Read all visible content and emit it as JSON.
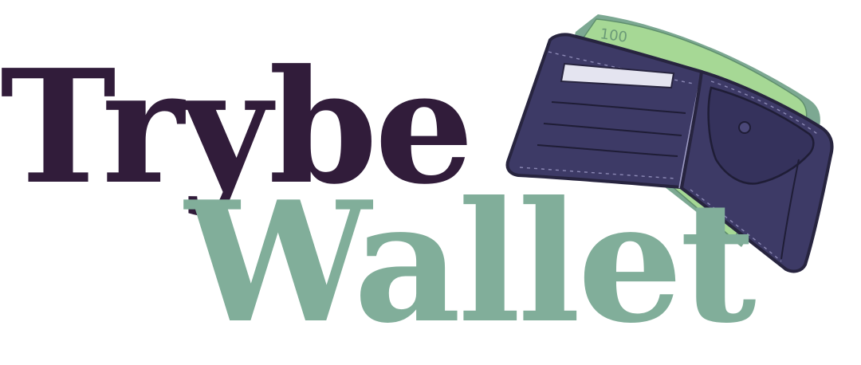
{
  "logo": {
    "word_top": "Trybe",
    "word_bottom": "Wallet",
    "banknote_value": "100",
    "colors": {
      "top_word": "#311c3a",
      "bottom_word": "#81ae9a",
      "wallet_body": "#3d3a66",
      "wallet_outline": "#27243f",
      "banknote_front": "#a6d895",
      "banknote_back": "#7ca892",
      "card": "#e4e4f0"
    },
    "icon": "wallet-with-cash-icon"
  }
}
